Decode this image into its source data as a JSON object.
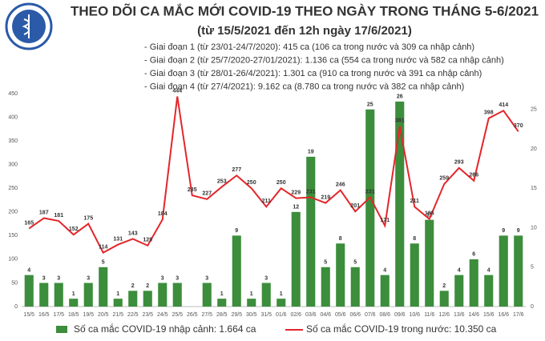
{
  "chart_data": {
    "type": "bar-line",
    "title": "THEO DÕI CA MẮC MỚI COVID-19 THEO NGÀY TRONG THÁNG 5-6/2021",
    "subtitle": "(từ 15/5/2021 đến 12h ngày 17/6/2021)",
    "notes": [
      "- Giai đoạn 1 (từ 23/01-24/7/2020): 415 ca (106 ca trong nước và 309 ca nhập cảnh)",
      "- Giai đoạn 2 (từ 25/7/2020-27/01/2021): 1.136 ca (554 ca trong nước và 582 ca nhập cảnh)",
      "- Giai đoạn 3 (từ 28/01-26/4/2021): 1.301 ca (910 ca trong nước và 391 ca nhập cảnh)",
      "- Giai đoạn 4 (từ 27/4/2021): 9.162 ca (8.780 ca trong nước và 382 ca nhập cảnh)"
    ],
    "categories": [
      "15/5",
      "16/5",
      "17/5",
      "18/5",
      "19/5",
      "20/5",
      "21/5",
      "22/5",
      "23/5",
      "24/5",
      "25/5",
      "26/5",
      "27/5",
      "28/5",
      "29/5",
      "30/5",
      "31/5",
      "01/6",
      "02/6",
      "03/6",
      "04/6",
      "05/6",
      "06/6",
      "07/6",
      "08/6",
      "09/6",
      "10/6",
      "11/6",
      "12/6",
      "13/6",
      "14/6",
      "15/6",
      "16/6",
      "17/6"
    ],
    "series": [
      {
        "name": "Số ca mắc COVID-19 nhập cảnh: 1.664 ca",
        "type": "bar",
        "axis": "y2",
        "color": "#3c8d3c",
        "values": [
          4,
          3,
          3,
          1,
          3,
          5,
          1,
          2,
          2,
          3,
          3,
          null,
          3,
          1,
          9,
          1,
          3,
          1,
          12,
          19,
          5,
          8,
          5,
          25,
          4,
          26,
          8,
          11,
          2,
          4,
          6,
          4,
          9,
          9
        ]
      },
      {
        "name": "Số ca mắc COVID-19 trong nước: 10.350 ca",
        "type": "line",
        "color": "#e3262b",
        "values": [
          165,
          187,
          181,
          152,
          175,
          114,
          131,
          143,
          129,
          184,
          444,
          235,
          227,
          253,
          277,
          250,
          211,
          250,
          229,
          231,
          219,
          246,
          201,
          231,
          171,
          381,
          211,
          185,
          259,
          293,
          266,
          398,
          414,
          370
        ]
      }
    ],
    "ylim": [
      0,
      450
    ],
    "yticks": [
      0,
      50,
      100,
      150,
      200,
      250,
      300,
      350,
      400,
      450
    ],
    "y2lim": [
      0,
      27
    ],
    "y2ticks": [
      0,
      5,
      10,
      15,
      20,
      25
    ]
  }
}
